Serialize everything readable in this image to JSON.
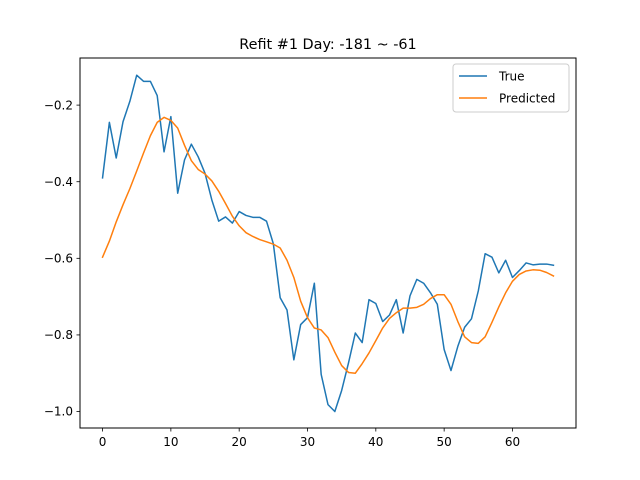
{
  "chart_data": {
    "type": "line",
    "title": "Refit #1 Day: -181 ~ -61",
    "xlabel": "",
    "ylabel": "",
    "xlim": [
      -3.3,
      69.3
    ],
    "ylim": [
      -1.043,
      -0.077
    ],
    "x_ticks": [
      0,
      10,
      20,
      30,
      40,
      50,
      60
    ],
    "y_ticks": [
      -1.0,
      -0.8,
      -0.6,
      -0.4,
      -0.2
    ],
    "x_tick_labels": [
      "0",
      "10",
      "20",
      "30",
      "40",
      "50",
      "60"
    ],
    "y_tick_labels": [
      "−1.0",
      "−0.8",
      "−0.6",
      "−0.4",
      "−0.2"
    ],
    "grid": false,
    "legend_position": "top-right",
    "series": [
      {
        "name": "True",
        "color": "#1f77b4",
        "x": [
          0,
          1,
          2,
          3,
          4,
          5,
          6,
          7,
          8,
          9,
          10,
          11,
          12,
          13,
          14,
          15,
          16,
          17,
          18,
          19,
          20,
          21,
          22,
          23,
          24,
          25,
          26,
          27,
          28,
          29,
          30,
          31,
          32,
          33,
          34,
          35,
          36,
          37,
          38,
          39,
          40,
          41,
          42,
          43,
          44,
          45,
          46,
          47,
          48,
          49,
          50,
          51,
          52,
          53,
          54,
          55,
          56,
          57,
          58,
          59,
          60,
          61,
          62,
          63,
          64,
          65,
          66
        ],
        "values": [
          -0.39,
          -0.245,
          -0.338,
          -0.243,
          -0.19,
          -0.122,
          -0.138,
          -0.138,
          -0.175,
          -0.322,
          -0.23,
          -0.43,
          -0.343,
          -0.302,
          -0.335,
          -0.378,
          -0.448,
          -0.503,
          -0.492,
          -0.508,
          -0.478,
          -0.488,
          -0.493,
          -0.493,
          -0.503,
          -0.562,
          -0.703,
          -0.735,
          -0.865,
          -0.773,
          -0.755,
          -0.665,
          -0.903,
          -0.982,
          -1.0,
          -0.945,
          -0.873,
          -0.795,
          -0.82,
          -0.708,
          -0.718,
          -0.765,
          -0.748,
          -0.708,
          -0.795,
          -0.698,
          -0.655,
          -0.665,
          -0.69,
          -0.72,
          -0.838,
          -0.893,
          -0.83,
          -0.78,
          -0.758,
          -0.685,
          -0.588,
          -0.597,
          -0.638,
          -0.605,
          -0.65,
          -0.632,
          -0.612,
          -0.617,
          -0.615,
          -0.615,
          -0.618
        ]
      },
      {
        "name": "Predicted",
        "color": "#ff7f0e",
        "x": [
          0,
          1,
          2,
          3,
          4,
          5,
          6,
          7,
          8,
          9,
          10,
          11,
          12,
          13,
          14,
          15,
          16,
          17,
          18,
          19,
          20,
          21,
          22,
          23,
          24,
          25,
          26,
          27,
          28,
          29,
          30,
          31,
          32,
          33,
          34,
          35,
          36,
          37,
          38,
          39,
          40,
          41,
          42,
          43,
          44,
          45,
          46,
          47,
          48,
          49,
          50,
          51,
          52,
          53,
          54,
          55,
          56,
          57,
          58,
          59,
          60,
          61,
          62,
          63,
          64,
          65,
          66
        ],
        "values": [
          -0.597,
          -0.555,
          -0.505,
          -0.46,
          -0.418,
          -0.372,
          -0.325,
          -0.28,
          -0.245,
          -0.232,
          -0.24,
          -0.26,
          -0.305,
          -0.345,
          -0.368,
          -0.38,
          -0.398,
          -0.425,
          -0.457,
          -0.49,
          -0.515,
          -0.533,
          -0.543,
          -0.551,
          -0.557,
          -0.563,
          -0.573,
          -0.605,
          -0.65,
          -0.712,
          -0.755,
          -0.782,
          -0.787,
          -0.807,
          -0.845,
          -0.88,
          -0.898,
          -0.9,
          -0.875,
          -0.847,
          -0.815,
          -0.782,
          -0.757,
          -0.742,
          -0.73,
          -0.73,
          -0.728,
          -0.72,
          -0.705,
          -0.695,
          -0.695,
          -0.72,
          -0.765,
          -0.805,
          -0.82,
          -0.822,
          -0.805,
          -0.767,
          -0.727,
          -0.69,
          -0.66,
          -0.642,
          -0.633,
          -0.63,
          -0.631,
          -0.637,
          -0.646
        ]
      }
    ]
  }
}
